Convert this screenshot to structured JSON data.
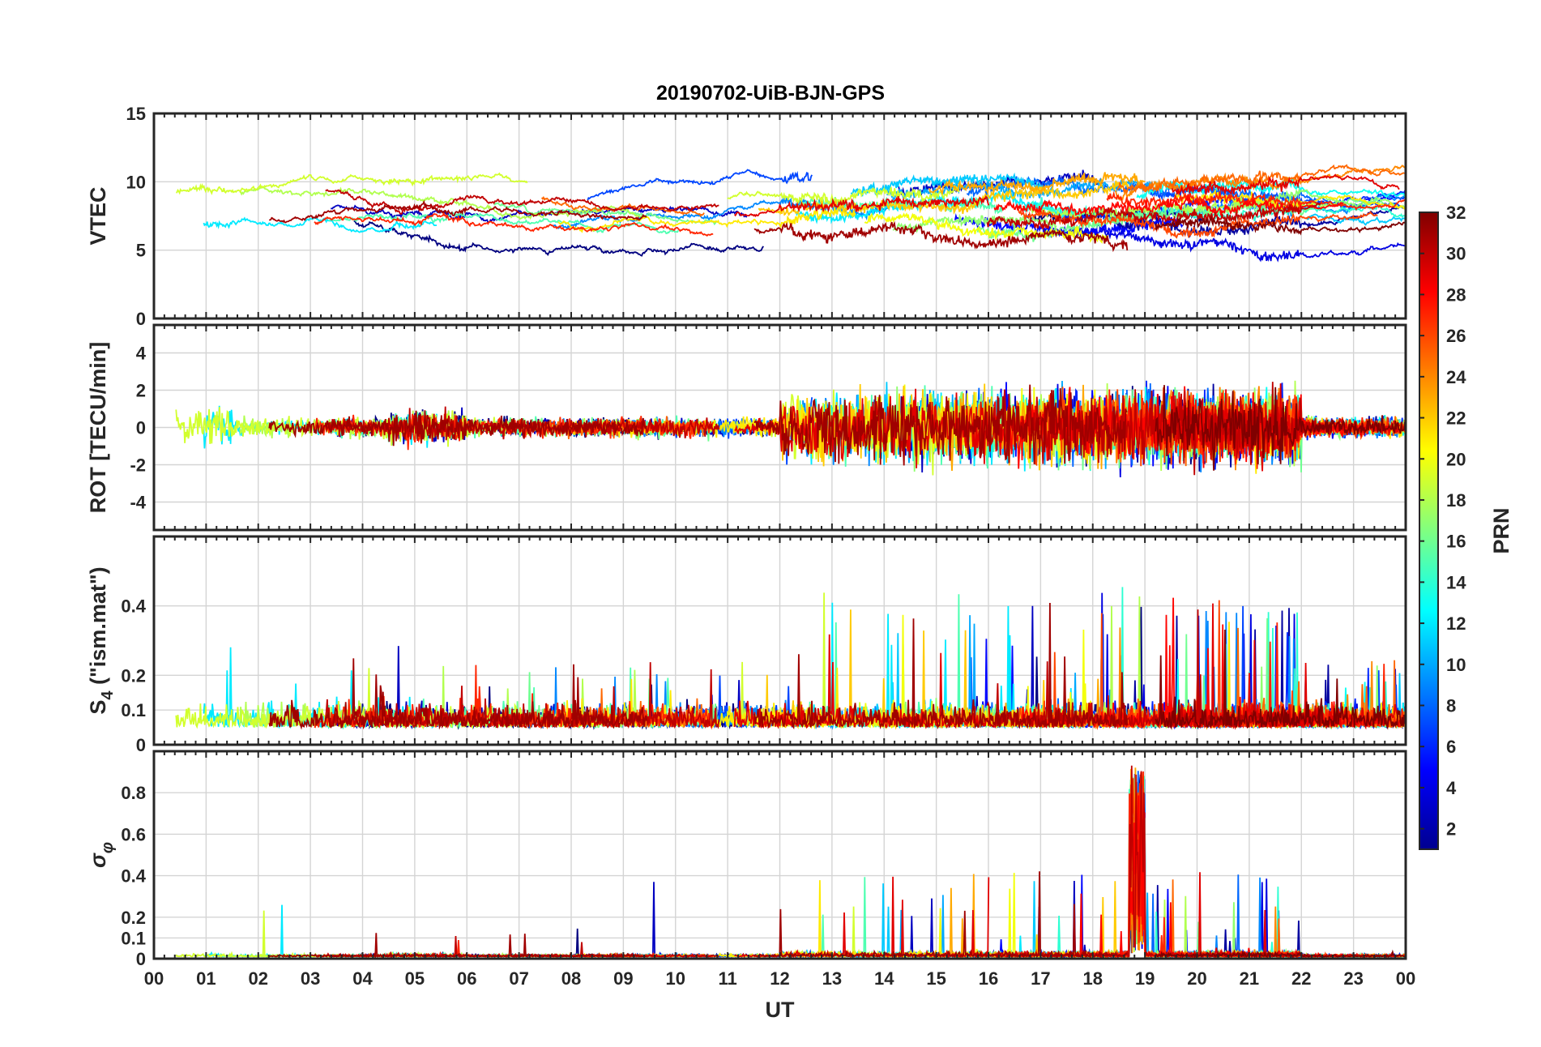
{
  "figure": {
    "title": "20190702-UiB-BJN-GPS"
  },
  "chart_data": [
    {
      "type": "line",
      "panel": "vtec",
      "ylabel": "VTEC",
      "ylim": [
        0,
        15
      ],
      "yticks": [
        0,
        5,
        10,
        15
      ],
      "xlim": [
        0,
        24
      ],
      "grid": true,
      "color_by": "PRN"
    },
    {
      "type": "line",
      "panel": "rot",
      "ylabel": "ROT [TECU/min]",
      "ylim": [
        -5.5,
        5.5
      ],
      "yticks": [
        -4,
        -2,
        0,
        2,
        4
      ],
      "xlim": [
        0,
        24
      ],
      "grid": true,
      "color_by": "PRN"
    },
    {
      "type": "line",
      "panel": "s4",
      "ylabel_main": "S",
      "ylabel_sub": "4",
      "ylabel_rest": " (\"ism.mat\")",
      "ylim": [
        0,
        0.6
      ],
      "yticks": [
        0,
        0.1,
        0.2,
        0.4
      ],
      "ytick_labels": [
        "0",
        "0.1",
        "0.2",
        "0.4"
      ],
      "xlim": [
        0,
        24
      ],
      "grid": true,
      "color_by": "PRN"
    },
    {
      "type": "line",
      "panel": "sigma_phi",
      "ylabel_main": "σ",
      "ylabel_sub": "φ",
      "ylim": [
        0,
        1
      ],
      "yticks": [
        0,
        0.1,
        0.2,
        0.4,
        0.6,
        0.8
      ],
      "ytick_labels": [
        "0",
        "0.1",
        "0.2",
        "0.4",
        "0.6",
        "0.8"
      ],
      "xlim": [
        0,
        24
      ],
      "grid": true,
      "color_by": "PRN",
      "xlabel": "UT",
      "xticks": [
        0,
        1,
        2,
        3,
        4,
        5,
        6,
        7,
        8,
        9,
        10,
        11,
        12,
        13,
        14,
        15,
        16,
        17,
        18,
        19,
        20,
        21,
        22,
        23,
        24
      ],
      "xtick_labels": [
        "00",
        "01",
        "02",
        "03",
        "04",
        "05",
        "06",
        "07",
        "08",
        "09",
        "10",
        "11",
        "12",
        "13",
        "14",
        "15",
        "16",
        "17",
        "18",
        "19",
        "20",
        "21",
        "22",
        "23",
        "00"
      ]
    }
  ],
  "colorbar": {
    "label": "PRN",
    "range": [
      1,
      32
    ],
    "ticks": [
      2,
      4,
      6,
      8,
      10,
      12,
      14,
      16,
      18,
      20,
      22,
      24,
      26,
      28,
      30,
      32
    ],
    "tick_labels": [
      "2",
      "4",
      "6",
      "8",
      "10",
      "12",
      "14",
      "16",
      "18",
      "20",
      "22",
      "24",
      "26",
      "28",
      "30",
      "32"
    ],
    "colormap": "jet"
  }
}
